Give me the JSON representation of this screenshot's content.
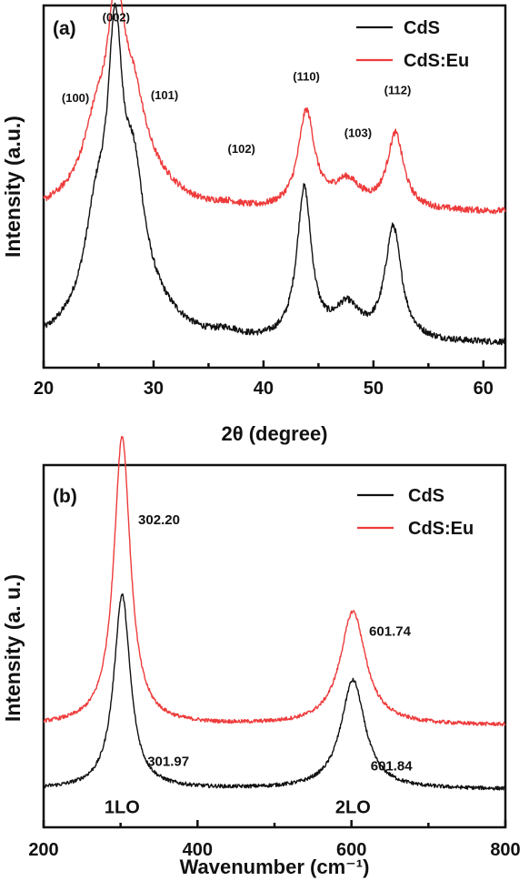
{
  "chart_data": [
    {
      "type": "line",
      "panel_label": "(a)",
      "xlabel": "2θ (degree)",
      "ylabel": "Intensity (a.u.)",
      "xlim": [
        20,
        62
      ],
      "xticks": [
        20,
        30,
        40,
        50,
        60
      ],
      "yticks_shown": false,
      "legend_position": "top-right",
      "series": [
        {
          "name": "CdS",
          "color": "#111111",
          "baseline": 0.09,
          "noise": 0.012,
          "offset": 0,
          "peaks": [
            {
              "x": 24.8,
              "height": 0.32,
              "width": 1.3
            },
            {
              "x": 26.5,
              "height": 0.86,
              "width": 0.8
            },
            {
              "x": 28.2,
              "height": 0.42,
              "width": 1.2
            },
            {
              "x": 36.7,
              "height": 0.03,
              "width": 1.6
            },
            {
              "x": 43.7,
              "height": 0.56,
              "width": 0.8
            },
            {
              "x": 47.6,
              "height": 0.12,
              "width": 1.4
            },
            {
              "x": 51.8,
              "height": 0.42,
              "width": 0.9
            }
          ],
          "tail": {
            "x": 27.5,
            "height": 0.15,
            "width": 5
          }
        },
        {
          "name": "CdS:Eu",
          "color": "#ee3b3b",
          "baseline": 0.58,
          "noise": 0.012,
          "offset": 0,
          "peaks": [
            {
              "x": 24.8,
              "height": 0.2,
              "width": 1.4
            },
            {
              "x": 26.6,
              "height": 0.58,
              "width": 0.9
            },
            {
              "x": 28.2,
              "height": 0.24,
              "width": 1.3
            },
            {
              "x": 36.7,
              "height": 0.02,
              "width": 1.6
            },
            {
              "x": 43.9,
              "height": 0.36,
              "width": 0.9
            },
            {
              "x": 47.6,
              "height": 0.1,
              "width": 1.5
            },
            {
              "x": 52.0,
              "height": 0.28,
              "width": 0.9
            }
          ],
          "tail": {
            "x": 27.5,
            "height": 0.14,
            "width": 5
          }
        }
      ],
      "annotations": [
        {
          "text": "(002)",
          "x": 26.6,
          "y": 1.29
        },
        {
          "text": "(100)",
          "x": 22.9,
          "y": 0.99
        },
        {
          "text": "(101)",
          "x": 31.0,
          "y": 1.0
        },
        {
          "text": "(102)",
          "x": 38.0,
          "y": 0.8
        },
        {
          "text": "(110)",
          "x": 43.9,
          "y": 1.07
        },
        {
          "text": "(103)",
          "x": 48.6,
          "y": 0.86
        },
        {
          "text": "(112)",
          "x": 52.2,
          "y": 1.02
        }
      ]
    },
    {
      "type": "line",
      "panel_label": "(b)",
      "xlabel": "Wavenumber (cm⁻¹)",
      "ylabel": "Intensity (a. u.)",
      "xlim": [
        200,
        800
      ],
      "xticks": [
        200,
        400,
        600,
        800
      ],
      "yticks_shown": false,
      "legend_position": "top-right",
      "series": [
        {
          "name": "CdS",
          "color": "#111111",
          "baseline": 0.08,
          "noise": 0.008,
          "peaks": [
            {
              "x": 302,
              "height": 0.82,
              "width": 13
            },
            {
              "x": 602,
              "height": 0.46,
              "width": 19
            }
          ]
        },
        {
          "name": "CdS:Eu",
          "color": "#ee3b3b",
          "baseline": 0.35,
          "noise": 0.008,
          "peaks": [
            {
              "x": 302,
              "height": 1.22,
              "width": 13
            },
            {
              "x": 602,
              "height": 0.48,
              "width": 20
            }
          ]
        }
      ],
      "annotations": [
        {
          "text": "302.20",
          "x": 350,
          "y": 1.2,
          "cls": "ann-raman"
        },
        {
          "text": "301.97",
          "x": 362,
          "y": 0.18,
          "cls": "ann-raman"
        },
        {
          "text": "601.74",
          "x": 650,
          "y": 0.73,
          "cls": "ann-raman"
        },
        {
          "text": "601.84",
          "x": 652,
          "y": 0.16,
          "cls": "ann-raman"
        },
        {
          "text": "1LO",
          "x": 302,
          "y": -0.02,
          "cls": "mode-label"
        },
        {
          "text": "2LO",
          "x": 602,
          "y": -0.02,
          "cls": "mode-label"
        }
      ]
    }
  ]
}
